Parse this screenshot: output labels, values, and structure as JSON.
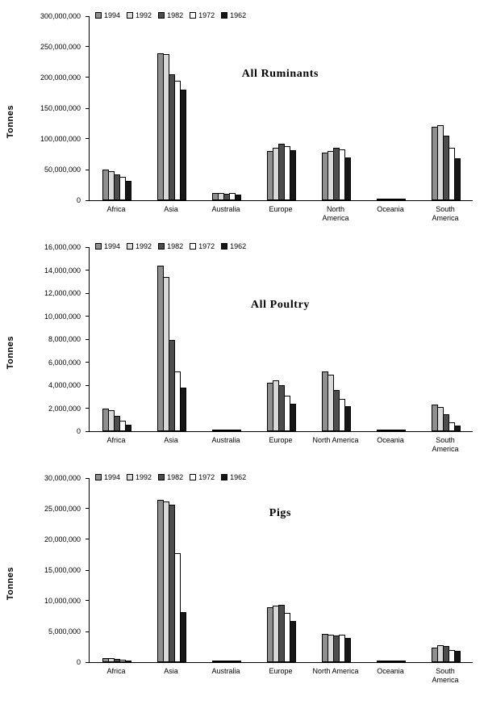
{
  "series_styles": [
    {
      "name": "1994",
      "fill": "#8f8f8f",
      "pattern": "dots"
    },
    {
      "name": "1992",
      "fill": "#d9d9d9",
      "pattern": "dots"
    },
    {
      "name": "1982",
      "fill": "#4d4d4d",
      "pattern": "solid"
    },
    {
      "name": "1972",
      "fill": "#ffffff",
      "pattern": "solid"
    },
    {
      "name": "1962",
      "fill": "#161616",
      "pattern": "solid"
    }
  ],
  "chart_data": [
    {
      "type": "bar",
      "title": "All Ruminants",
      "ylabel": "Tonnes",
      "grid": false,
      "legend_position": "top-left",
      "legend": [
        "1994",
        "1992",
        "1982",
        "1972",
        "1962"
      ],
      "categories": [
        "Africa",
        "Asia",
        "Australia",
        "Europe",
        "North America",
        "Oceania",
        "South America"
      ],
      "category_labels": [
        "Africa",
        "Asia",
        "Australia",
        "Europe",
        "North\nAmerica",
        "Oceania",
        "South\nAmerica"
      ],
      "ylim": [
        0,
        300000000
      ],
      "yticks": [
        "300,000,000",
        "250,000,000",
        "200,000,000",
        "150,000,000",
        "100,000,000",
        "50,000,000",
        "0"
      ],
      "series": [
        {
          "name": "1994",
          "values": [
            50000000,
            240000000,
            12000000,
            80000000,
            78000000,
            2000000,
            120000000
          ]
        },
        {
          "name": "1992",
          "values": [
            48000000,
            238000000,
            12000000,
            85000000,
            80000000,
            2000000,
            122000000
          ]
        },
        {
          "name": "1982",
          "values": [
            42000000,
            205000000,
            11000000,
            92000000,
            85000000,
            2000000,
            105000000
          ]
        },
        {
          "name": "1972",
          "values": [
            38000000,
            195000000,
            12000000,
            88000000,
            83000000,
            2000000,
            85000000
          ]
        },
        {
          "name": "1962",
          "values": [
            32000000,
            180000000,
            9000000,
            82000000,
            70000000,
            1500000,
            68000000
          ]
        }
      ]
    },
    {
      "type": "bar",
      "title": "All Poultry",
      "ylabel": "Tonnes",
      "grid": false,
      "legend_position": "top-left",
      "legend": [
        "1994",
        "1992",
        "1982",
        "1972",
        "1962"
      ],
      "categories": [
        "Africa",
        "Asia",
        "Australia",
        "Europe",
        "North America",
        "Oceania",
        "South America"
      ],
      "category_labels": [
        "Africa",
        "Asia",
        "Australia",
        "Europe",
        "North America",
        "Oceania",
        "South\nAmerica"
      ],
      "ylim": [
        0,
        16000000
      ],
      "yticks": [
        "16,000,000",
        "14,000,000",
        "12,000,000",
        "10,000,000",
        "8,000,000",
        "6,000,000",
        "4,000,000",
        "2,000,000",
        "0"
      ],
      "series": [
        {
          "name": "1994",
          "values": [
            1950000,
            14400000,
            150000,
            4200000,
            5200000,
            60000,
            2300000
          ]
        },
        {
          "name": "1992",
          "values": [
            1800000,
            13400000,
            140000,
            4400000,
            4900000,
            55000,
            2100000
          ]
        },
        {
          "name": "1982",
          "values": [
            1300000,
            7900000,
            120000,
            4000000,
            3600000,
            45000,
            1500000
          ]
        },
        {
          "name": "1972",
          "values": [
            900000,
            5200000,
            100000,
            3100000,
            2800000,
            35000,
            800000
          ]
        },
        {
          "name": "1962",
          "values": [
            550000,
            3800000,
            80000,
            2400000,
            2200000,
            25000,
            500000
          ]
        }
      ]
    },
    {
      "type": "bar",
      "title": "Pigs",
      "ylabel": "Tonnes",
      "grid": false,
      "legend_position": "top-left",
      "legend": [
        "1994",
        "1992",
        "1982",
        "1972",
        "1962"
      ],
      "categories": [
        "Africa",
        "Asia",
        "Australia",
        "Europe",
        "North America",
        "Oceania",
        "South America"
      ],
      "category_labels": [
        "Africa",
        "Asia",
        "Australia",
        "Europe",
        "North America",
        "Oceania",
        "South\nAmerica"
      ],
      "ylim": [
        0,
        30000000
      ],
      "yticks": [
        "30,000,000",
        "25,000,000",
        "20,000,000",
        "15,000,000",
        "10,000,000",
        "5,000,000",
        "0"
      ],
      "series": [
        {
          "name": "1994",
          "values": [
            700000,
            26500000,
            300000,
            9000000,
            4600000,
            50000,
            2400000
          ]
        },
        {
          "name": "1992",
          "values": [
            600000,
            26200000,
            300000,
            9200000,
            4500000,
            45000,
            2700000
          ]
        },
        {
          "name": "1982",
          "values": [
            500000,
            25700000,
            280000,
            9300000,
            4400000,
            40000,
            2600000
          ]
        },
        {
          "name": "1972",
          "values": [
            350000,
            17700000,
            250000,
            8000000,
            4500000,
            35000,
            2000000
          ]
        },
        {
          "name": "1962",
          "values": [
            300000,
            8200000,
            200000,
            6700000,
            4000000,
            30000,
            1800000
          ]
        }
      ]
    }
  ]
}
